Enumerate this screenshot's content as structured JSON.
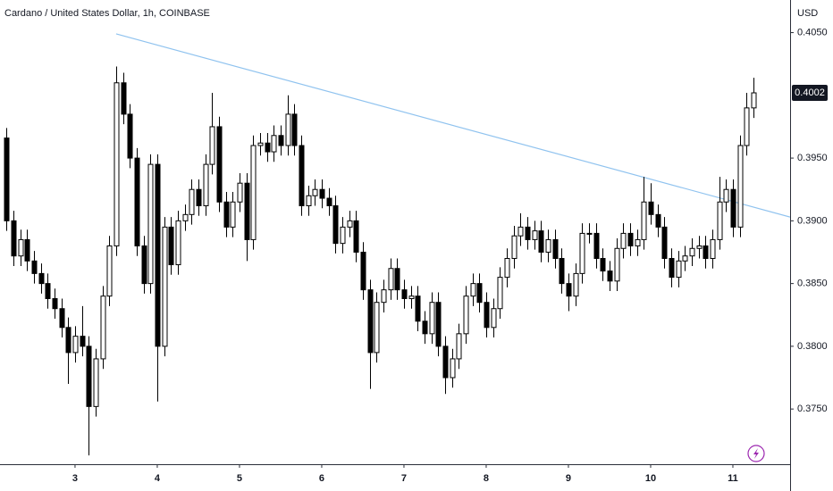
{
  "chart_data": {
    "type": "candlestick",
    "title": "Cardano / United States Dollar, 1h, COINBASE",
    "y_axis_label": "USD",
    "x": [
      -20,
      -18,
      -16,
      -14,
      -12,
      -10,
      -8,
      -6,
      -4,
      -2,
      0,
      2,
      4,
      6,
      8,
      10,
      12,
      14,
      16,
      18,
      20,
      22,
      24,
      26,
      28,
      30,
      32,
      34,
      36,
      38,
      40,
      42,
      44,
      46,
      48,
      50,
      52,
      54,
      56,
      58,
      60,
      62,
      64,
      66,
      68,
      70,
      72,
      74,
      76,
      78,
      80,
      82,
      84,
      86,
      88,
      90,
      92,
      94,
      96,
      98,
      100,
      102,
      104,
      106,
      108,
      110,
      112,
      114,
      116,
      118,
      120,
      122,
      124,
      126,
      128,
      130,
      132,
      134,
      136,
      138,
      140,
      142,
      144,
      146,
      148,
      150,
      152,
      154,
      156,
      158,
      160,
      162,
      164,
      166,
      168,
      170,
      172,
      174,
      176,
      178,
      180,
      182,
      184,
      186,
      188,
      190,
      192,
      194,
      196,
      198
    ],
    "open": [
      0.3966,
      0.39,
      0.3872,
      0.3885,
      0.3868,
      0.3858,
      0.385,
      0.3838,
      0.383,
      0.3815,
      0.3795,
      0.3808,
      0.38,
      0.3752,
      0.379,
      0.384,
      0.388,
      0.401,
      0.3985,
      0.395,
      0.388,
      0.385,
      0.3945,
      0.38,
      0.3895,
      0.3865,
      0.39,
      0.3905,
      0.3925,
      0.3912,
      0.3945,
      0.3975,
      0.3915,
      0.3895,
      0.3915,
      0.393,
      0.3885,
      0.396,
      0.3962,
      0.3955,
      0.3968,
      0.396,
      0.3985,
      0.396,
      0.3912,
      0.392,
      0.3925,
      0.3918,
      0.3912,
      0.3882,
      0.3895,
      0.39,
      0.3875,
      0.3845,
      0.3795,
      0.3835,
      0.3845,
      0.3862,
      0.3845,
      0.3838,
      0.384,
      0.382,
      0.381,
      0.3835,
      0.38,
      0.3775,
      0.379,
      0.381,
      0.384,
      0.385,
      0.3835,
      0.3815,
      0.383,
      0.3855,
      0.387,
      0.3888,
      0.3895,
      0.3885,
      0.3892,
      0.3875,
      0.3885,
      0.387,
      0.385,
      0.384,
      0.3858,
      0.389,
      0.389,
      0.387,
      0.386,
      0.3852,
      0.3878,
      0.389,
      0.388,
      0.3885,
      0.3915,
      0.3905,
      0.3895,
      0.387,
      0.3855,
      0.3868,
      0.3872,
      0.3878,
      0.388,
      0.387,
      0.3885,
      0.3915,
      0.3925,
      0.3895,
      0.396,
      0.399
    ],
    "high": [
      0.3974,
      0.3908,
      0.3893,
      0.3893,
      0.3876,
      0.3866,
      0.3858,
      0.3846,
      0.3838,
      0.3823,
      0.3816,
      0.3832,
      0.3808,
      0.3798,
      0.3848,
      0.3888,
      0.4023,
      0.4018,
      0.3993,
      0.3958,
      0.3888,
      0.3953,
      0.3953,
      0.3903,
      0.3903,
      0.3908,
      0.3913,
      0.3933,
      0.3933,
      0.3953,
      0.4002,
      0.3983,
      0.3923,
      0.3923,
      0.3938,
      0.3938,
      0.3968,
      0.397,
      0.397,
      0.3976,
      0.3976,
      0.4,
      0.3993,
      0.3968,
      0.3928,
      0.3933,
      0.3933,
      0.3926,
      0.392,
      0.3903,
      0.3908,
      0.3908,
      0.3883,
      0.3853,
      0.3843,
      0.3853,
      0.387,
      0.387,
      0.3853,
      0.3848,
      0.3848,
      0.3828,
      0.3843,
      0.3843,
      0.3808,
      0.3798,
      0.3818,
      0.3848,
      0.3858,
      0.3858,
      0.3843,
      0.3838,
      0.3863,
      0.3878,
      0.3896,
      0.3906,
      0.3903,
      0.39,
      0.39,
      0.3893,
      0.3893,
      0.3878,
      0.3858,
      0.3866,
      0.3898,
      0.3898,
      0.3898,
      0.3878,
      0.3868,
      0.3886,
      0.3898,
      0.3898,
      0.3893,
      0.3935,
      0.393,
      0.3913,
      0.3903,
      0.3878,
      0.3876,
      0.388,
      0.3886,
      0.3888,
      0.3888,
      0.3893,
      0.3935,
      0.3933,
      0.3933,
      0.3968,
      0.4002,
      0.4014
    ],
    "low": [
      0.3892,
      0.3864,
      0.3864,
      0.386,
      0.385,
      0.3842,
      0.383,
      0.3822,
      0.3807,
      0.377,
      0.3787,
      0.3792,
      0.3713,
      0.3744,
      0.3782,
      0.3832,
      0.3872,
      0.3977,
      0.3942,
      0.3872,
      0.3842,
      0.3842,
      0.3756,
      0.3792,
      0.3857,
      0.3857,
      0.3892,
      0.3897,
      0.3904,
      0.3904,
      0.3937,
      0.3907,
      0.3887,
      0.3887,
      0.3907,
      0.3868,
      0.3877,
      0.3952,
      0.3947,
      0.3947,
      0.3952,
      0.3952,
      0.3952,
      0.3904,
      0.3904,
      0.3912,
      0.391,
      0.3904,
      0.3874,
      0.3874,
      0.3887,
      0.3867,
      0.3837,
      0.3766,
      0.3787,
      0.3827,
      0.3837,
      0.3837,
      0.383,
      0.383,
      0.3812,
      0.3802,
      0.3802,
      0.3792,
      0.3762,
      0.3767,
      0.3782,
      0.3802,
      0.3832,
      0.3827,
      0.3807,
      0.3807,
      0.3822,
      0.3847,
      0.3862,
      0.388,
      0.3877,
      0.3877,
      0.3867,
      0.3867,
      0.3862,
      0.3842,
      0.3828,
      0.3832,
      0.385,
      0.3882,
      0.3862,
      0.3852,
      0.3844,
      0.3844,
      0.387,
      0.3872,
      0.3872,
      0.3877,
      0.3897,
      0.3887,
      0.3862,
      0.3847,
      0.3847,
      0.386,
      0.3864,
      0.387,
      0.3862,
      0.3862,
      0.3877,
      0.3907,
      0.3887,
      0.3887,
      0.3952,
      0.3982
    ],
    "close": [
      0.39,
      0.3872,
      0.3885,
      0.3868,
      0.3858,
      0.385,
      0.3838,
      0.383,
      0.3815,
      0.3795,
      0.3808,
      0.38,
      0.3752,
      0.379,
      0.384,
      0.388,
      0.401,
      0.3985,
      0.395,
      0.388,
      0.385,
      0.3945,
      0.38,
      0.3895,
      0.3865,
      0.39,
      0.3905,
      0.3925,
      0.3912,
      0.3945,
      0.3975,
      0.3915,
      0.3895,
      0.3915,
      0.393,
      0.3885,
      0.396,
      0.3962,
      0.3955,
      0.3968,
      0.396,
      0.3985,
      0.396,
      0.3912,
      0.392,
      0.3925,
      0.3918,
      0.3912,
      0.3882,
      0.3895,
      0.39,
      0.3875,
      0.3845,
      0.3795,
      0.3835,
      0.3845,
      0.3862,
      0.3845,
      0.3838,
      0.384,
      0.382,
      0.381,
      0.3835,
      0.38,
      0.3775,
      0.379,
      0.381,
      0.384,
      0.385,
      0.3835,
      0.3815,
      0.383,
      0.3855,
      0.387,
      0.3888,
      0.3895,
      0.3885,
      0.3892,
      0.3875,
      0.3885,
      0.387,
      0.385,
      0.384,
      0.3858,
      0.389,
      0.389,
      0.387,
      0.386,
      0.3852,
      0.3878,
      0.389,
      0.388,
      0.3885,
      0.3915,
      0.3905,
      0.3895,
      0.387,
      0.3855,
      0.3868,
      0.3872,
      0.3878,
      0.388,
      0.387,
      0.3885,
      0.3915,
      0.3925,
      0.3895,
      0.396,
      0.399,
      0.4002
    ],
    "up_color": "#ffffff",
    "down_color": "#000000",
    "border_color": "#000000",
    "trendline": {
      "x": [
        12,
        208.7
      ],
      "y": [
        0.4049,
        0.3903
      ],
      "color": "#90c3ef"
    },
    "xlim": [
      -21.9,
      208.7
    ],
    "xticks": [
      {
        "value": 0,
        "label": "3"
      },
      {
        "value": 24,
        "label": "4"
      },
      {
        "value": 48,
        "label": "5"
      },
      {
        "value": 72,
        "label": "6"
      },
      {
        "value": 96,
        "label": "7"
      },
      {
        "value": 120,
        "label": "8"
      },
      {
        "value": 144,
        "label": "9"
      },
      {
        "value": 168,
        "label": "10"
      },
      {
        "value": 192,
        "label": "11"
      }
    ],
    "ylim": [
      0.3706,
      0.4076
    ],
    "yticks": [
      {
        "value": 0.405,
        "label": "0.4050"
      },
      {
        "value": 0.395,
        "label": "0.3950"
      },
      {
        "value": 0.39,
        "label": "0.3900"
      },
      {
        "value": 0.385,
        "label": "0.3850"
      },
      {
        "value": 0.38,
        "label": "0.3800"
      },
      {
        "value": 0.375,
        "label": "0.3750"
      }
    ],
    "grid": false
  }
}
